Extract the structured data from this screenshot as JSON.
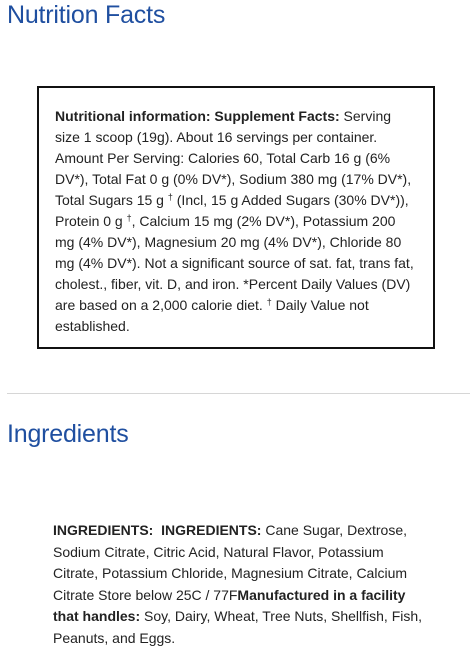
{
  "nutrition": {
    "heading": "Nutrition Facts",
    "bold_label": "Nutritional information: Supplement Facts:",
    "text_part1": " Serving size 1 scoop (19g). About 16 servings per container. Amount Per Serving: Calories 60, Total Carb 16 g (6% DV*), Total Fat 0 g (0% DV*), Sodium 380 mg (17% DV*), Total Sugars 15 g ",
    "dagger": "†",
    "text_part2": " (Incl, 15 g Added Sugars (30% DV*)), Protein 0 g ",
    "text_part3": ", Calcium 15 mg (2% DV*), Potassium 200 mg (4% DV*), Magnesium 20 mg (4% DV*), Chloride 80 mg (4% DV*). Not a significant source of sat. fat, trans fat, cholest., fiber, vit. D, and iron. *Percent Daily Values (DV) are based on a 2,000 calorie diet. ",
    "text_part4": " Daily Value not established."
  },
  "ingredients": {
    "heading": "Ingredients",
    "label1": "INGREDIENTS:",
    "label2": "INGREDIENTS:",
    "list": " Cane Sugar, Dextrose, Sodium Citrate, Citric Acid, Natural Flavor, Potassium Citrate, Potassium Chloride, Magnesium Citrate, Calcium Citrate Store below 25C / 77F",
    "facility_label": "Manufactured in a facility that handles:",
    "allergens": " Soy, Dairy, Wheat, Tree Nuts, Shellfish, Fish, Peanuts, and Eggs."
  }
}
